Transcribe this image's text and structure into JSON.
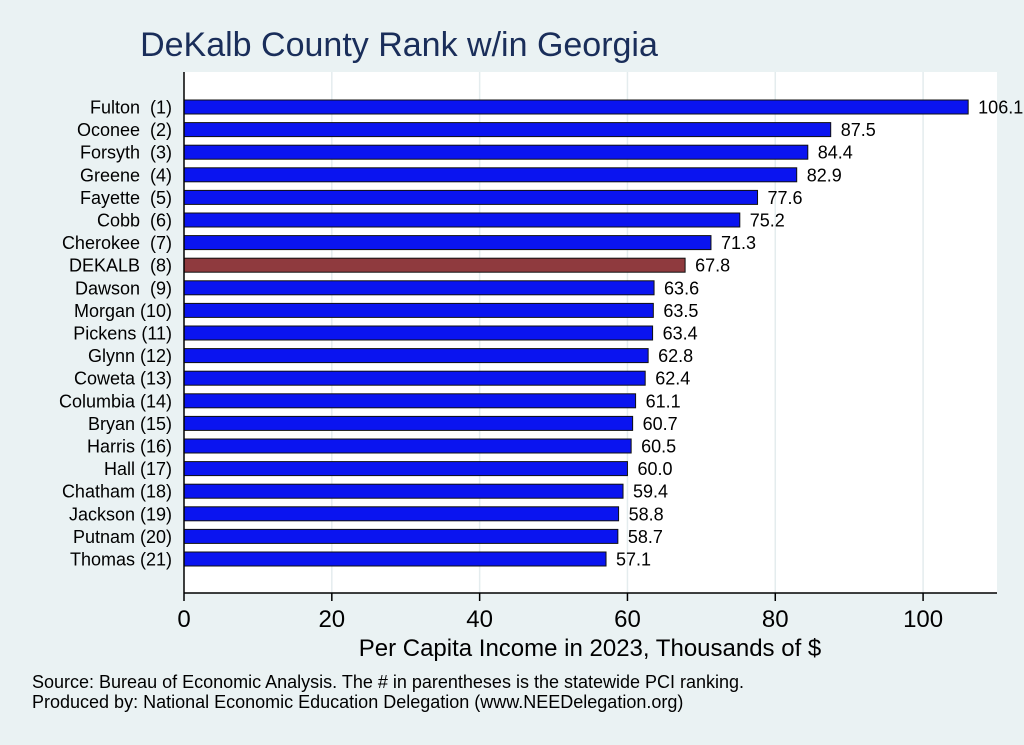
{
  "chart_data": {
    "type": "bar",
    "orientation": "horizontal",
    "title": "DeKalb County Rank w/in Georgia",
    "xlabel": "Per Capita Income in 2023, Thousands of $",
    "ylabel": "",
    "xlim": [
      0,
      110
    ],
    "xticks": [
      0,
      20,
      40,
      60,
      80,
      100
    ],
    "grid": "vertical",
    "categories": [
      "Fulton  (1)",
      "Oconee  (2)",
      "Forsyth  (3)",
      "Greene  (4)",
      "Fayette  (5)",
      "Cobb  (6)",
      "Cherokee  (7)",
      "DEKALB  (8)",
      "Dawson  (9)",
      "Morgan (10)",
      "Pickens (11)",
      "Glynn (12)",
      "Coweta (13)",
      "Columbia (14)",
      "Bryan (15)",
      "Harris (16)",
      "Hall (17)",
      "Chatham (18)",
      "Jackson (19)",
      "Putnam (20)",
      "Thomas (21)"
    ],
    "values": [
      106.1,
      87.5,
      84.4,
      82.9,
      77.6,
      75.2,
      71.3,
      67.8,
      63.6,
      63.5,
      63.4,
      62.8,
      62.4,
      61.1,
      60.7,
      60.5,
      60.0,
      59.4,
      58.8,
      58.7,
      57.1
    ],
    "value_labels": [
      "106.1",
      "87.5",
      "84.4",
      "82.9",
      "77.6",
      "75.2",
      "71.3",
      "67.8",
      "63.6",
      "63.5",
      "63.4",
      "62.8",
      "62.4",
      "61.1",
      "60.7",
      "60.5",
      "60.0",
      "59.4",
      "58.8",
      "58.7",
      "57.1"
    ],
    "highlight_index": 7,
    "colors": {
      "bar": "#0a14f0",
      "highlight": "#8f3a3e",
      "bar_edge": "#101010",
      "plot_bg": "#ffffff",
      "page_bg": "#eaf2f3",
      "grid": "#e4ecee",
      "title": "#1a2e5a"
    }
  },
  "notes": {
    "source": "Source: Bureau of Economic Analysis. The # in parentheses is the statewide PCI ranking.",
    "produced": "Produced by: National Economic Education Delegation (www.NEEDelegation.org)"
  }
}
